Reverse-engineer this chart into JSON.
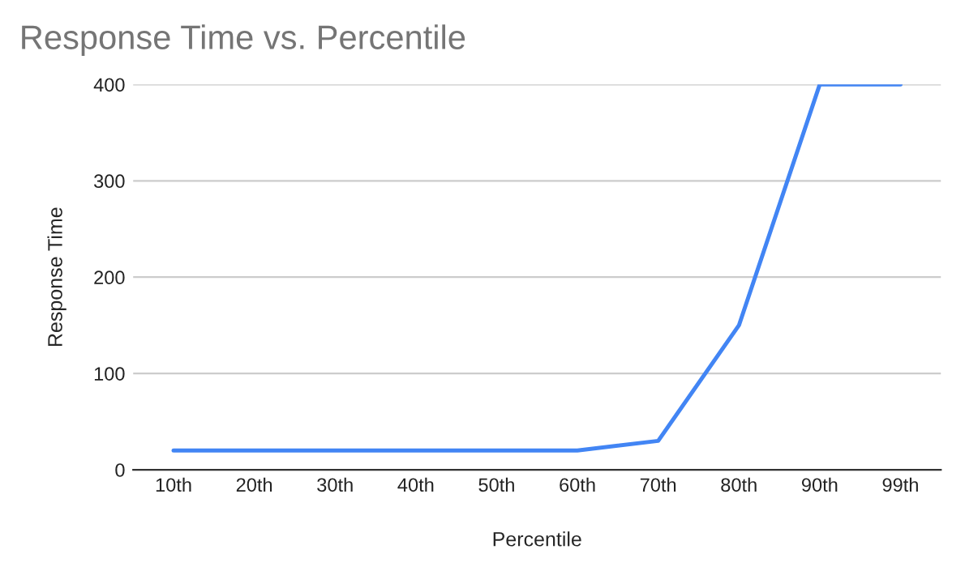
{
  "chart_data": {
    "type": "line",
    "title": "Response Time vs. Percentile",
    "xlabel": "Percentile",
    "ylabel": "Response Time",
    "categories": [
      "10th",
      "20th",
      "30th",
      "40th",
      "50th",
      "60th",
      "70th",
      "80th",
      "90th",
      "99th"
    ],
    "series": [
      {
        "color": "#4285f4",
        "values": [
          20,
          20,
          20,
          20,
          20,
          20,
          30,
          150,
          400,
          400
        ]
      }
    ],
    "ylim": [
      0,
      400
    ],
    "yticks": [
      0,
      100,
      200,
      300,
      400
    ],
    "grid": "y",
    "marker": "none",
    "line_style": "solid"
  }
}
